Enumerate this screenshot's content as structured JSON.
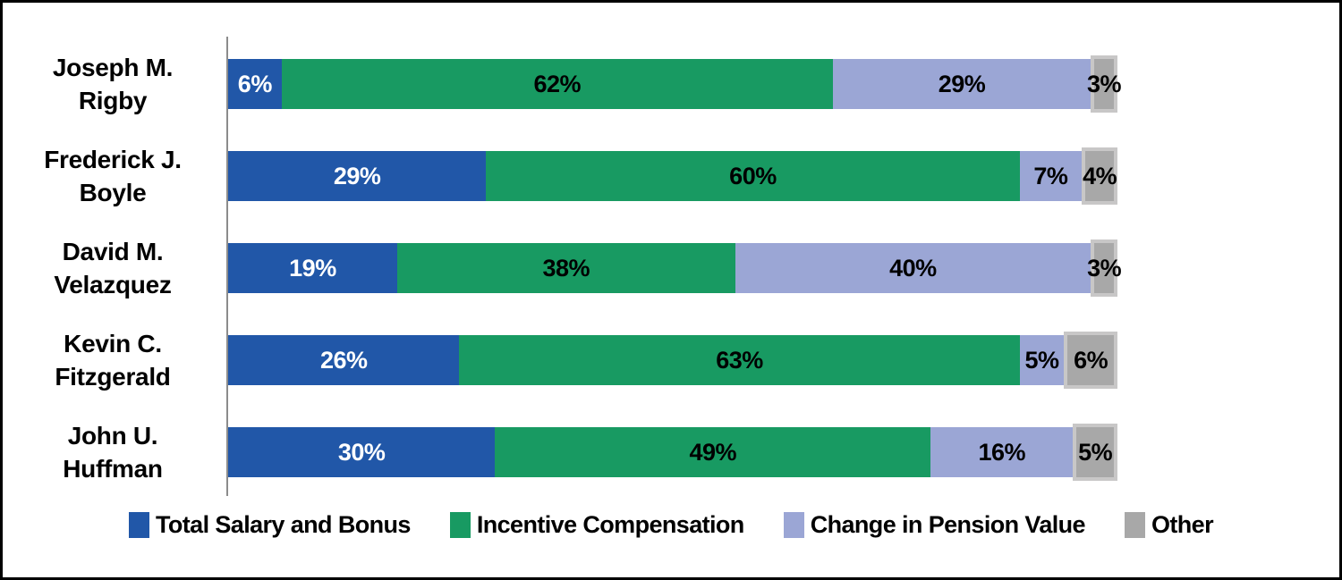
{
  "chart_data": {
    "type": "bar",
    "orientation": "horizontal",
    "stacked": true,
    "unit": "%",
    "xlim": [
      0,
      100
    ],
    "grid": false,
    "legend_position": "bottom",
    "axis_color": "#8C8C8C",
    "background_color": "#FFFFFF",
    "frame_border_color": "#000000",
    "categories": [
      {
        "lines": [
          "Joseph M.",
          "Rigby"
        ]
      },
      {
        "lines": [
          "Frederick J.",
          "Boyle"
        ]
      },
      {
        "lines": [
          "David M.",
          "Velazquez"
        ]
      },
      {
        "lines": [
          "Kevin C.",
          "Fitzgerald"
        ]
      },
      {
        "lines": [
          "John U.",
          "Huffman"
        ]
      }
    ],
    "series": [
      {
        "name": "Total Salary and Bonus",
        "color": "#2157A8",
        "label_color": "#FFFFFF",
        "values": [
          6,
          29,
          19,
          26,
          30
        ]
      },
      {
        "name": "Incentive Compensation",
        "color": "#189A62",
        "label_color": "#000000",
        "values": [
          62,
          60,
          38,
          63,
          49
        ]
      },
      {
        "name": "Change in Pension Value",
        "color": "#9BA6D5",
        "label_color": "#000000",
        "values": [
          29,
          7,
          40,
          5,
          16
        ]
      },
      {
        "name": "Other",
        "color": "#A8A8A8",
        "label_color": "#000000",
        "border_color": "#C8C7C7",
        "values": [
          3,
          4,
          3,
          6,
          5
        ]
      }
    ]
  }
}
